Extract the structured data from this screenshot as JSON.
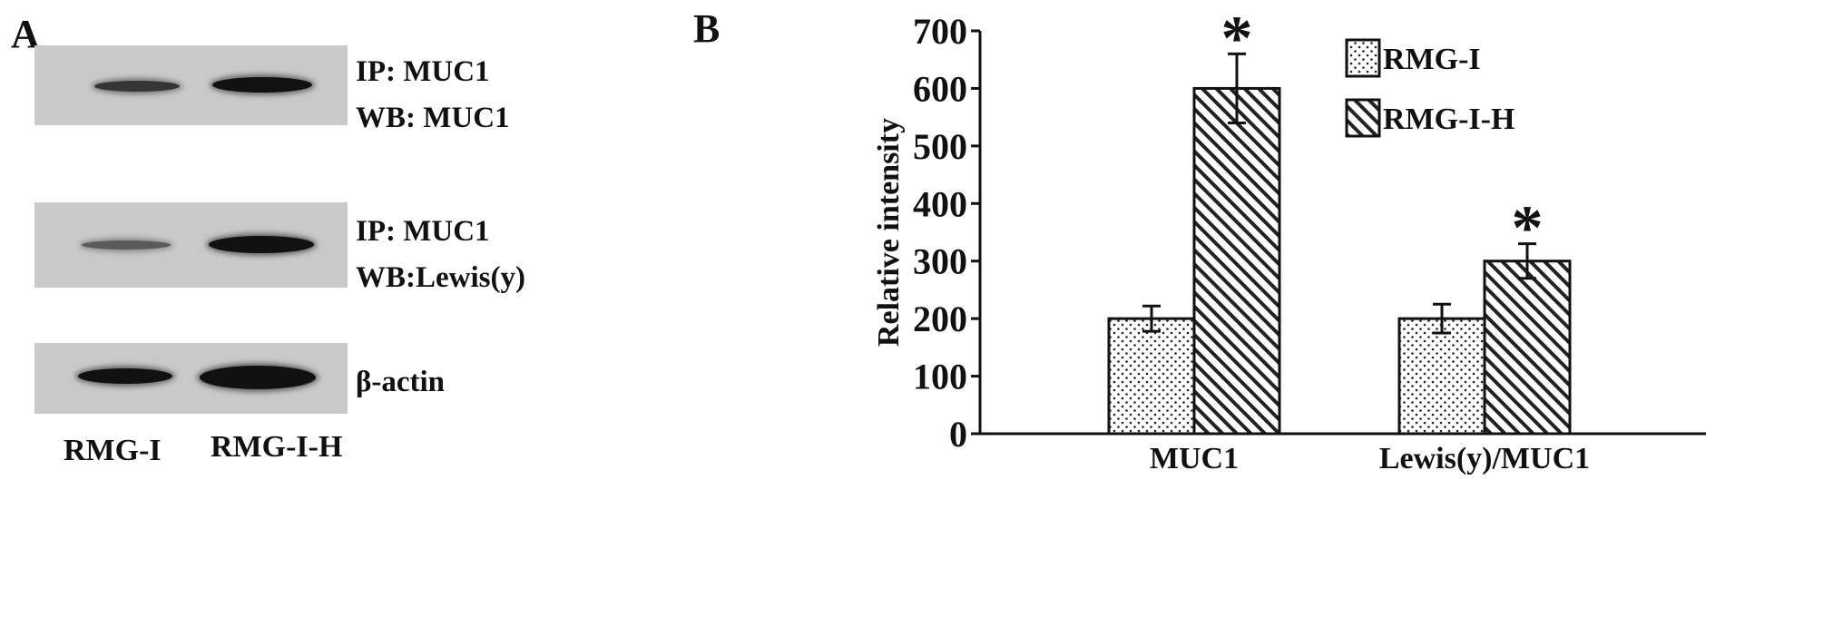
{
  "panel_a": {
    "letter": "A",
    "blots": [
      {
        "label_line1": "IP: MUC1",
        "label_line2": "WB: MUC1"
      },
      {
        "label_line1": "IP: MUC1",
        "label_line2": "WB:Lewis(y)"
      },
      {
        "label_line1": "β-actin",
        "label_line2": ""
      }
    ],
    "lanes": [
      "RMG-I",
      "RMG-I-H"
    ],
    "colors": {
      "membrane": "#c9c9c9",
      "band": "#111111"
    }
  },
  "panel_b": {
    "letter": "B"
  },
  "chart_data": {
    "type": "bar",
    "title": "",
    "xlabel": "",
    "ylabel": "Relative intensity",
    "ylim": [
      0,
      700
    ],
    "yticks": [
      0,
      100,
      200,
      300,
      400,
      500,
      600,
      700
    ],
    "categories": [
      "MUC1",
      "Lewis(y)/MUC1"
    ],
    "series": [
      {
        "name": "RMG-I",
        "values": [
          200,
          200
        ],
        "errors": [
          22,
          25
        ],
        "pattern": "dots",
        "significance": [
          "",
          ""
        ]
      },
      {
        "name": "RMG-I-H",
        "values": [
          600,
          300
        ],
        "errors": [
          60,
          30
        ],
        "pattern": "diagonal-hatch",
        "significance": [
          "*",
          "*"
        ]
      }
    ],
    "legend": "top-right",
    "grid": false
  }
}
